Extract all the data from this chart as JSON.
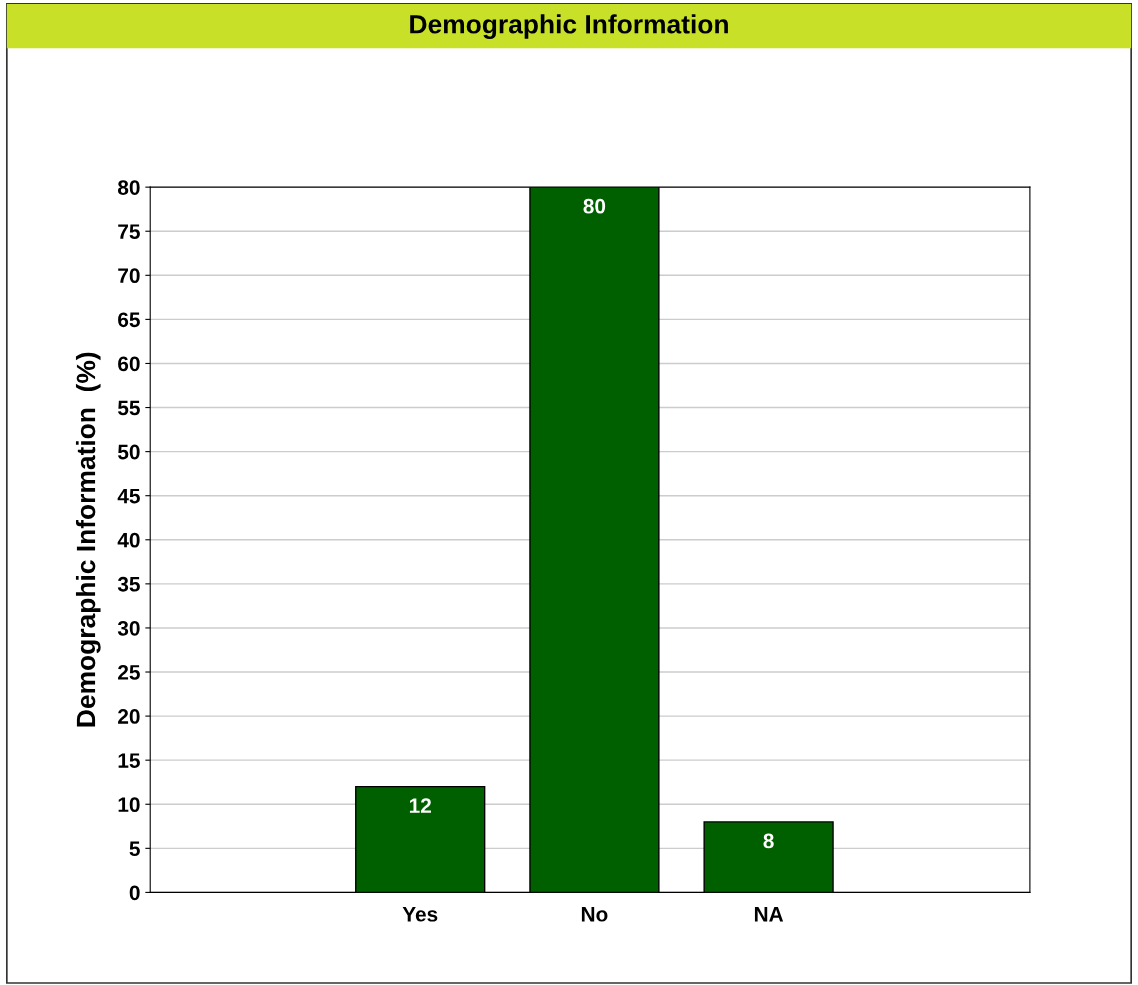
{
  "chart_data": {
    "type": "bar",
    "title": "Demographic Information",
    "ylabel": "Demographic Information  (%)",
    "categories": [
      "Yes",
      "No",
      "NA"
    ],
    "values": [
      12,
      80,
      8
    ],
    "color": "#006000",
    "ylim": [
      0,
      80
    ],
    "yticks": [
      0,
      5,
      10,
      15,
      20,
      25,
      30,
      35,
      40,
      45,
      50,
      55,
      60,
      65,
      70,
      75,
      80
    ],
    "grid": "y",
    "data_labels": true
  }
}
